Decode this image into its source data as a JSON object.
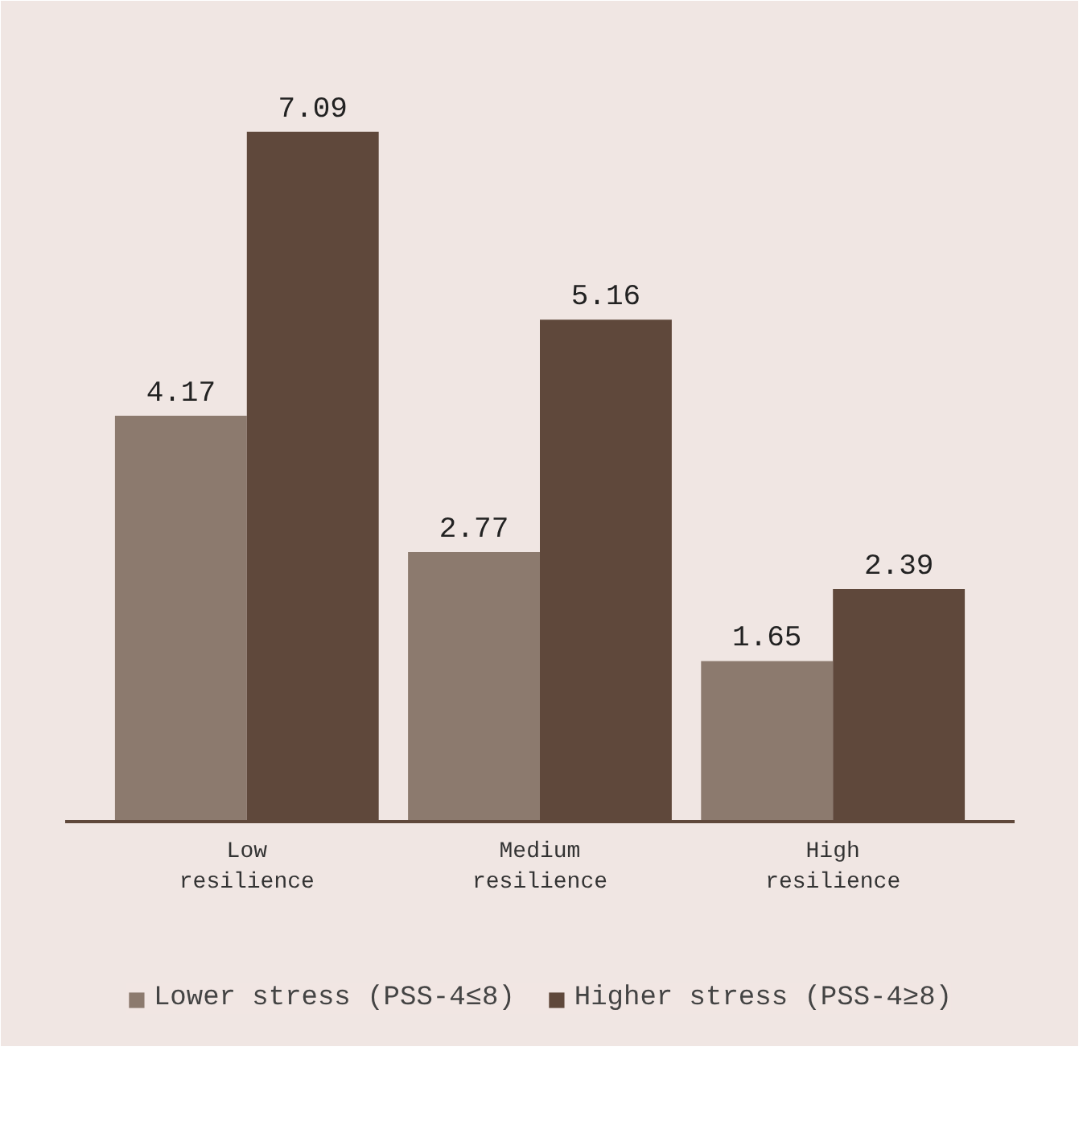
{
  "chart_data": {
    "type": "bar",
    "categories": [
      "Low resilience",
      "Medium resilience",
      "High resilience"
    ],
    "series": [
      {
        "name": "Lower stress (PSS-4≤8)",
        "color": "#8c7a6e",
        "values": [
          4.17,
          2.77,
          1.65
        ]
      },
      {
        "name": "Higher stress (PSS-4≥8)",
        "color": "#5f483b",
        "values": [
          7.09,
          5.16,
          2.39
        ]
      }
    ],
    "data_labels": true,
    "grid": false,
    "legend": "bottom"
  }
}
